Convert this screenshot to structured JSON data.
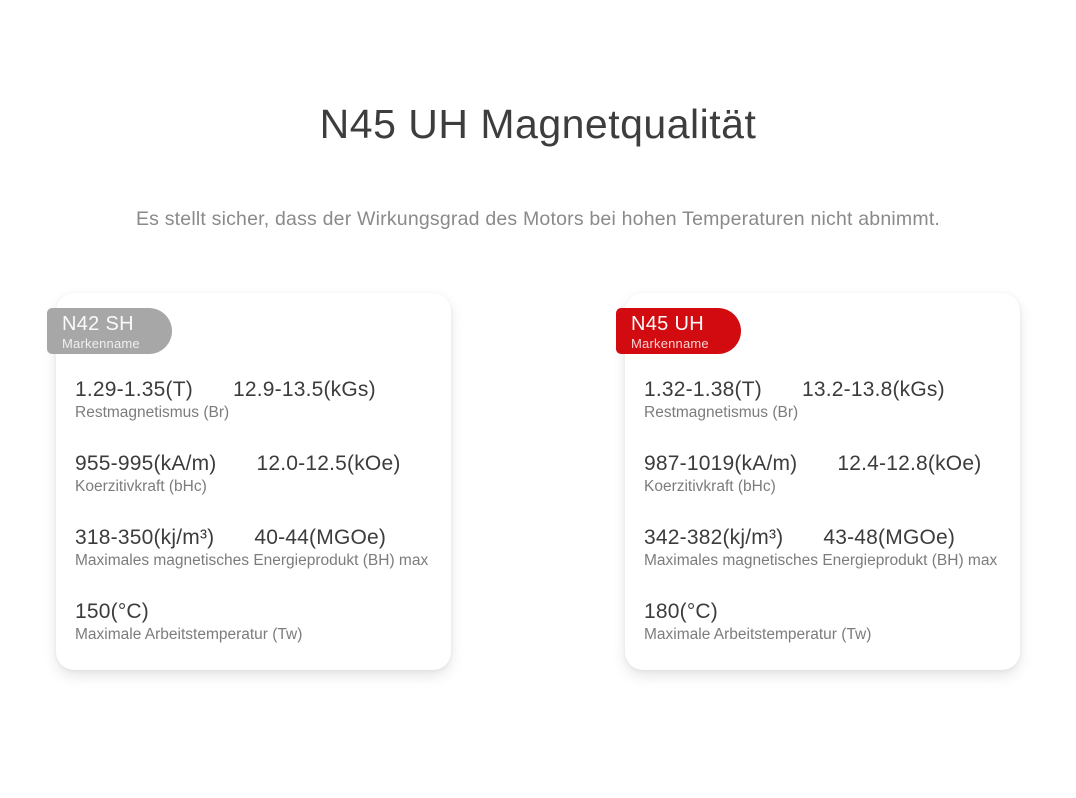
{
  "page": {
    "title": "N45 UH Magnetqualität",
    "subtitle": "Es stellt sicher, dass der Wirkungsgrad des Motors bei hohen Temperaturen nicht abnimmt."
  },
  "colors": {
    "accent_red": "#d20b10",
    "badge_gray": "#a7a7a7",
    "title_text": "#3d3d3d",
    "subtitle_text": "#8a8a8a",
    "value_text": "#3c3c3c",
    "label_text": "#7c7c7c",
    "card_background": "#ffffff"
  },
  "cards": [
    {
      "grade": "N42 SH",
      "badge_label": "Markenname",
      "badge_color": "#a7a7a7",
      "rows": [
        {
          "value1": "1.29-1.35(T)",
          "value2": "12.9-13.5(kGs)",
          "label": "Restmagnetismus (Br)"
        },
        {
          "value1": "955-995(kA/m)",
          "value2": "12.0-12.5(kOe)",
          "label": "Koerzitivkraft (bHc)"
        },
        {
          "value1": "318-350(kj/m³)",
          "value2": "40-44(MGOe)",
          "label": "Maximales magnetisches Energieprodukt (BH) max"
        },
        {
          "value1": "150(°C)",
          "value2": "",
          "label": "Maximale Arbeitstemperatur (Tw)"
        }
      ]
    },
    {
      "grade": "N45 UH",
      "badge_label": "Markenname",
      "badge_color": "#d20b10",
      "rows": [
        {
          "value1": "1.32-1.38(T)",
          "value2": "13.2-13.8(kGs)",
          "label": "Restmagnetismus (Br)"
        },
        {
          "value1": "987-1019(kA/m)",
          "value2": "12.4-12.8(kOe)",
          "label": "Koerzitivkraft (bHc)"
        },
        {
          "value1": "342-382(kj/m³)",
          "value2": "43-48(MGOe)",
          "label": "Maximales magnetisches Energieprodukt (BH) max"
        },
        {
          "value1": "180(°C)",
          "value2": "",
          "label": "Maximale Arbeitstemperatur (Tw)"
        }
      ]
    }
  ]
}
